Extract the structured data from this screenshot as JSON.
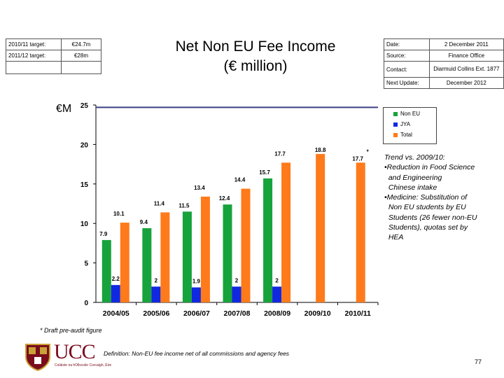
{
  "targets": {
    "rows": [
      {
        "label": "2010/11 target:",
        "value": "€24.7m"
      },
      {
        "label": "2011/12 target:",
        "value": "€28m"
      },
      {
        "label": "",
        "value": ""
      }
    ]
  },
  "title": {
    "line1": "Net Non EU Fee Income",
    "line2": "(€ million)"
  },
  "meta": {
    "rows": [
      {
        "label": "Date:",
        "value": "2 December 2011"
      },
      {
        "label": "Source:",
        "value": "Finance Office"
      },
      {
        "label": "Contact:",
        "value": "Diarmuid Collins Ext. 1877"
      },
      {
        "label": "Next Update:",
        "value": "December 2012"
      }
    ]
  },
  "y_unit_label": "€M",
  "chart_data": {
    "type": "bar",
    "categories": [
      "2004/05",
      "2005/06",
      "2006/07",
      "2007/08",
      "2008/09",
      "2009/10",
      "2010/11"
    ],
    "series": [
      {
        "name": "Non EU",
        "color": "#17a33b",
        "values": [
          7.9,
          9.4,
          11.5,
          12.4,
          15.7,
          null,
          null
        ]
      },
      {
        "name": "JYA",
        "color": "#1028e0",
        "values": [
          2.2,
          2,
          1.9,
          2,
          2,
          null,
          null
        ]
      },
      {
        "name": "Total",
        "color": "#ff7a1a",
        "values": [
          10.1,
          11.4,
          13.4,
          14.4,
          17.7,
          18.8,
          17.7
        ]
      }
    ],
    "yticks": [
      0,
      5,
      10,
      15,
      20,
      25
    ],
    "ylim": [
      0,
      25
    ],
    "target_line": 24.7,
    "target_line_color": "#3b3f7f",
    "annotations": [
      {
        "category": "2010/11",
        "text": "*"
      }
    ],
    "grid": false,
    "legend_position": "right"
  },
  "notes": [
    "Trend vs. 2009/10:",
    "•Reduction in Food Science",
    "  and Engineering",
    "  Chinese intake",
    "•Medicine: Substitution of",
    "  Non EU students by EU",
    "  Students (26 fewer non-EU",
    "  Students), quotas set by",
    "  HEA"
  ],
  "draft_note": "* Draft pre-audit figure",
  "definition": "Definition: Non-EU fee income net of all commissions and agency fees",
  "page_number": "77",
  "logo": {
    "name": "UCC",
    "subtitle": "Coláiste na hOllscoile Corcaigh, Éire"
  }
}
